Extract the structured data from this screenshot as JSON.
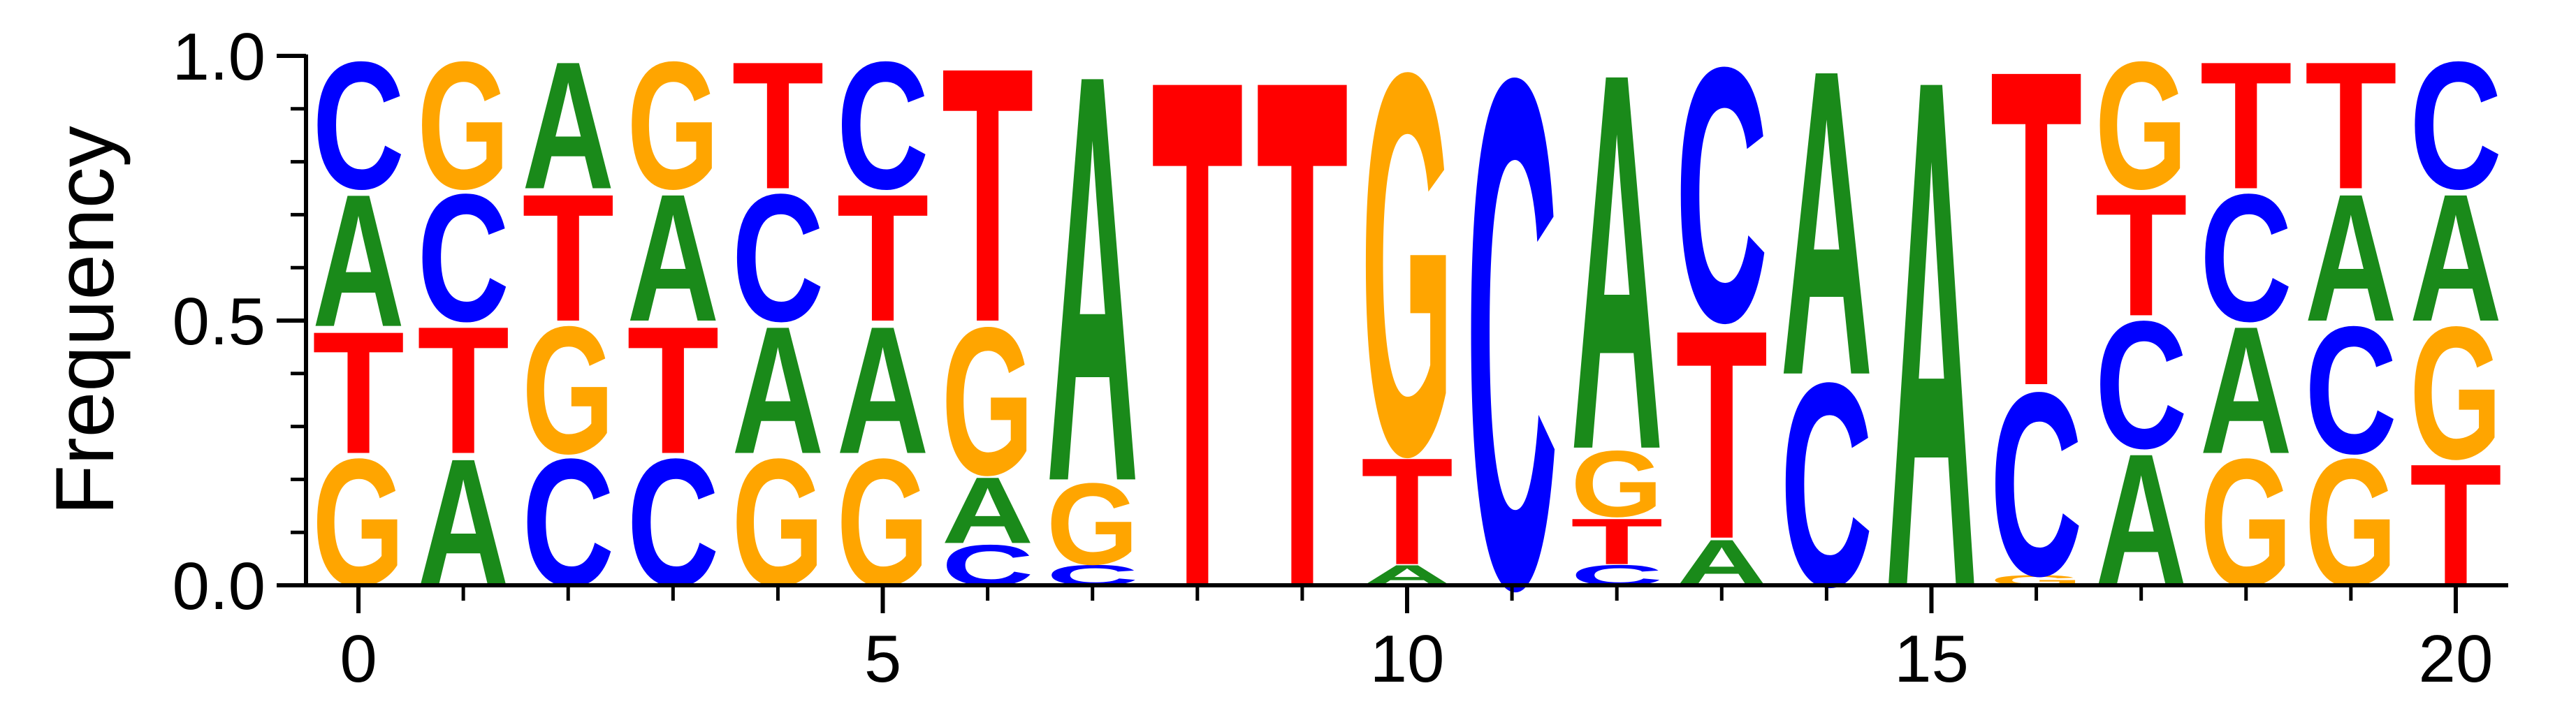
{
  "chart_data": {
    "type": "sequence-logo",
    "ylabel": "Frequency",
    "xlabel": "",
    "xlim": [
      -0.5,
      20.5
    ],
    "ylim": [
      0.0,
      1.0
    ],
    "xticks_major": [
      0,
      5,
      10,
      15,
      20
    ],
    "xticks_minor": [
      1,
      2,
      3,
      4,
      6,
      7,
      8,
      9,
      11,
      12,
      13,
      14,
      16,
      17,
      18,
      19
    ],
    "xtick_labels": [
      "0",
      "5",
      "10",
      "15",
      "20"
    ],
    "yticks_major": [
      0.0,
      0.5,
      1.0
    ],
    "yticks_minor": [
      0.1,
      0.2,
      0.3,
      0.4,
      0.6,
      0.7,
      0.8,
      0.9
    ],
    "ytick_labels": [
      "0.0",
      "0.5",
      "1.0"
    ],
    "colors": {
      "A": "#1a8a1a",
      "C": "#0000ff",
      "G": "#ffa500",
      "T": "#ff0000"
    },
    "positions": [
      {
        "pos": 0,
        "stack": [
          [
            "G",
            0.25
          ],
          [
            "T",
            0.24
          ],
          [
            "A",
            0.26
          ],
          [
            "C",
            0.25
          ]
        ]
      },
      {
        "pos": 1,
        "stack": [
          [
            "A",
            0.25
          ],
          [
            "T",
            0.25
          ],
          [
            "C",
            0.25
          ],
          [
            "G",
            0.25
          ]
        ]
      },
      {
        "pos": 2,
        "stack": [
          [
            "C",
            0.25
          ],
          [
            "G",
            0.25
          ],
          [
            "T",
            0.25
          ],
          [
            "A",
            0.25
          ]
        ]
      },
      {
        "pos": 3,
        "stack": [
          [
            "C",
            0.25
          ],
          [
            "T",
            0.25
          ],
          [
            "A",
            0.25
          ],
          [
            "G",
            0.25
          ]
        ]
      },
      {
        "pos": 4,
        "stack": [
          [
            "G",
            0.25
          ],
          [
            "A",
            0.25
          ],
          [
            "C",
            0.25
          ],
          [
            "T",
            0.25
          ]
        ]
      },
      {
        "pos": 5,
        "stack": [
          [
            "G",
            0.25
          ],
          [
            "A",
            0.25
          ],
          [
            "T",
            0.25
          ],
          [
            "C",
            0.25
          ]
        ]
      },
      {
        "pos": 6,
        "stack": [
          [
            "C",
            0.08
          ],
          [
            "A",
            0.13
          ],
          [
            "G",
            0.29
          ],
          [
            "T",
            0.5
          ]
        ]
      },
      {
        "pos": 7,
        "stack": [
          [
            "C",
            0.04
          ],
          [
            "G",
            0.16
          ],
          [
            "A",
            0.8
          ]
        ]
      },
      {
        "pos": 8,
        "stack": [
          [
            "T",
            1.0
          ]
        ]
      },
      {
        "pos": 9,
        "stack": [
          [
            "T",
            1.0
          ]
        ]
      },
      {
        "pos": 10,
        "stack": [
          [
            "A",
            0.04
          ],
          [
            "T",
            0.21
          ],
          [
            "G",
            0.75
          ]
        ]
      },
      {
        "pos": 11,
        "stack": [
          [
            "C",
            1.0
          ]
        ]
      },
      {
        "pos": 12,
        "stack": [
          [
            "C",
            0.04
          ],
          [
            "T",
            0.09
          ],
          [
            "G",
            0.13
          ],
          [
            "A",
            0.74
          ]
        ]
      },
      {
        "pos": 13,
        "stack": [
          [
            "A",
            0.09
          ],
          [
            "T",
            0.41
          ],
          [
            "C",
            0.5
          ]
        ]
      },
      {
        "pos": 14,
        "stack": [
          [
            "C",
            0.4
          ],
          [
            "A",
            0.6
          ]
        ]
      },
      {
        "pos": 15,
        "stack": [
          [
            "A",
            1.0
          ]
        ]
      },
      {
        "pos": 16,
        "stack": [
          [
            "G",
            0.02
          ],
          [
            "C",
            0.36
          ],
          [
            "T",
            0.62
          ]
        ]
      },
      {
        "pos": 17,
        "stack": [
          [
            "A",
            0.26
          ],
          [
            "C",
            0.25
          ],
          [
            "T",
            0.24
          ],
          [
            "G",
            0.25
          ]
        ]
      },
      {
        "pos": 18,
        "stack": [
          [
            "G",
            0.25
          ],
          [
            "A",
            0.25
          ],
          [
            "C",
            0.25
          ],
          [
            "T",
            0.25
          ]
        ]
      },
      {
        "pos": 19,
        "stack": [
          [
            "G",
            0.25
          ],
          [
            "C",
            0.25
          ],
          [
            "A",
            0.25
          ],
          [
            "T",
            0.25
          ]
        ]
      },
      {
        "pos": 20,
        "stack": [
          [
            "T",
            0.24
          ],
          [
            "G",
            0.26
          ],
          [
            "A",
            0.25
          ],
          [
            "C",
            0.25
          ]
        ]
      }
    ]
  }
}
